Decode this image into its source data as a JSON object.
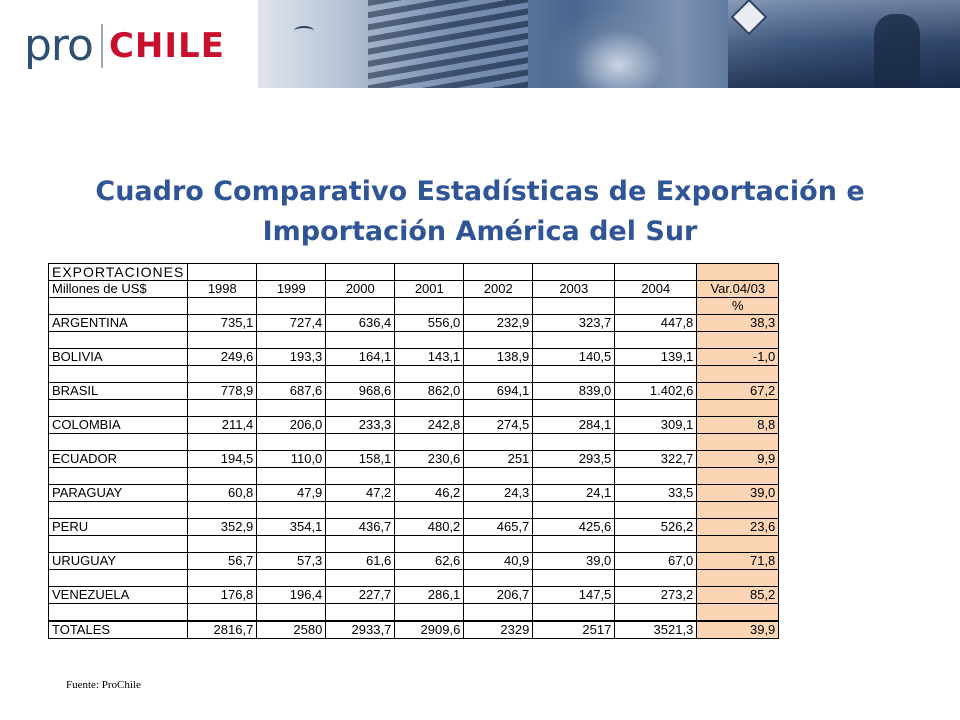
{
  "header": {
    "logo_pro": "pro",
    "logo_chile": "CHILE"
  },
  "title": {
    "line1": "Cuadro Comparativo Estadísticas de Exportación e",
    "line2": "Importación América del Sur"
  },
  "table": {
    "section_label": "EXPORTACIONES",
    "unit_label": "Millones de US$",
    "years": [
      "1998",
      "1999",
      "2000",
      "2001",
      "2002",
      "2003",
      "2004"
    ],
    "var_label": "Var.04/03",
    "var_unit": "%",
    "rows": [
      {
        "country": "ARGENTINA",
        "values": [
          "735,1",
          "727,4",
          "636,4",
          "556,0",
          "232,9",
          "323,7",
          "447,8"
        ],
        "var": "38,3"
      },
      {
        "country": "BOLIVIA",
        "values": [
          "249,6",
          "193,3",
          "164,1",
          "143,1",
          "138,9",
          "140,5",
          "139,1"
        ],
        "var": "-1,0"
      },
      {
        "country": "BRASIL",
        "values": [
          "778,9",
          "687,6",
          "968,6",
          "862,0",
          "694,1",
          "839,0",
          "1.402,6"
        ],
        "var": "67,2"
      },
      {
        "country": "COLOMBIA",
        "values": [
          "211,4",
          "206,0",
          "233,3",
          "242,8",
          "274,5",
          "284,1",
          "309,1"
        ],
        "var": "8,8"
      },
      {
        "country": "ECUADOR",
        "values": [
          "194,5",
          "110,0",
          "158,1",
          "230,6",
          "251",
          "293,5",
          "322,7"
        ],
        "var": "9,9"
      },
      {
        "country": "PARAGUAY",
        "values": [
          "60,8",
          "47,9",
          "47,2",
          "46,2",
          "24,3",
          "24,1",
          "33,5"
        ],
        "var": "39,0"
      },
      {
        "country": "PERU",
        "values": [
          "352,9",
          "354,1",
          "436,7",
          "480,2",
          "465,7",
          "425,6",
          "526,2"
        ],
        "var": "23,6"
      },
      {
        "country": "URUGUAY",
        "values": [
          "56,7",
          "57,3",
          "61,6",
          "62,6",
          "40,9",
          "39,0",
          "67,0"
        ],
        "var": "71,8"
      },
      {
        "country": "VENEZUELA",
        "values": [
          "176,8",
          "196,4",
          "227,7",
          "286,1",
          "206,7",
          "147,5",
          "273,2"
        ],
        "var": "85,2"
      }
    ],
    "totals": {
      "label": "TOTALES",
      "values": [
        "2816,7",
        "2580",
        "2933,7",
        "2909,6",
        "2329",
        "2517",
        "3521,3"
      ],
      "var": "39,9"
    }
  },
  "source": "Fuente: ProChile",
  "colors": {
    "title": "#2f5597",
    "var_fill": "#fcd5b5",
    "logo_red": "#c8102e",
    "logo_blue": "#2d4f78"
  }
}
